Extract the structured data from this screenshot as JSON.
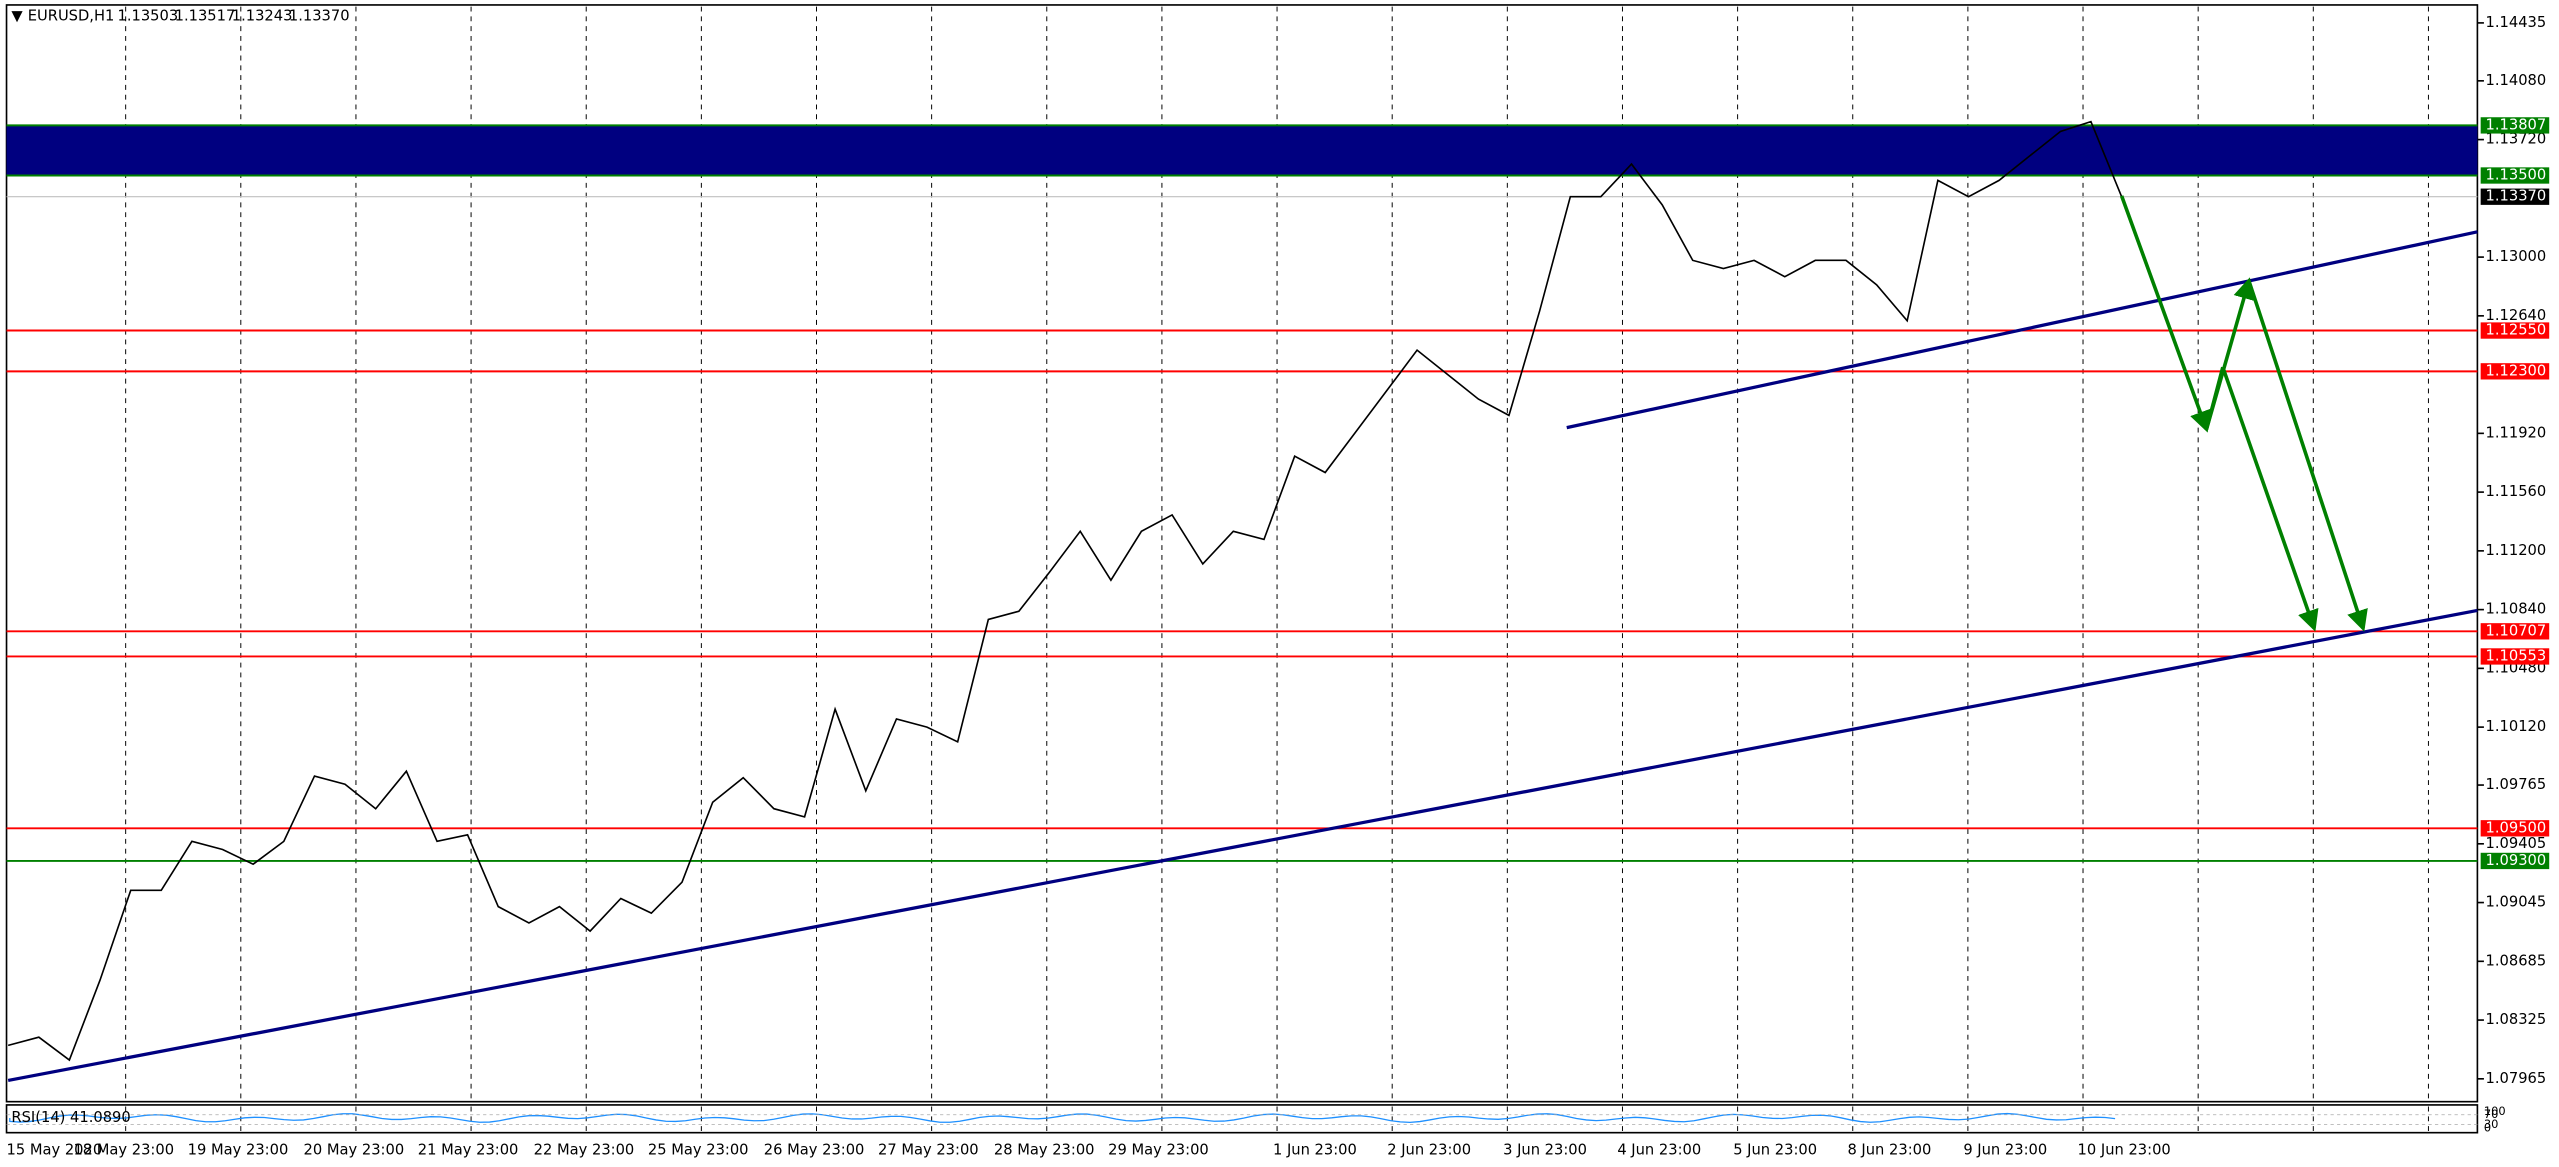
{
  "header": {
    "symbol": "EURUSD,H1",
    "ohlc": [
      "1.13503",
      "1.13517",
      "1.13243",
      "1.13370"
    ]
  },
  "price_axis": {
    "labels": [
      "1.14435",
      "1.14080",
      "1.13720",
      "1.13000",
      "1.12640",
      "1.11920",
      "1.11560",
      "1.11200",
      "1.10840",
      "1.10480",
      "1.10120",
      "1.09765",
      "1.09405",
      "1.09045",
      "1.08685",
      "1.08325",
      "1.07965"
    ]
  },
  "levels": [
    {
      "label": "1.13807",
      "color": "#008000"
    },
    {
      "label": "1.13500",
      "color": "#008000"
    },
    {
      "label": "1.13370",
      "color": "#000000"
    },
    {
      "label": "1.12550",
      "color": "#ff0000"
    },
    {
      "label": "1.12300",
      "color": "#ff0000"
    },
    {
      "label": "1.10707",
      "color": "#ff0000"
    },
    {
      "label": "1.10553",
      "color": "#ff0000"
    },
    {
      "label": "1.09500",
      "color": "#ff0000"
    },
    {
      "label": "1.09300",
      "color": "#008000"
    }
  ],
  "date_axis": {
    "labels": [
      "15 May 2020",
      "18 May 23:00",
      "19 May 23:00",
      "20 May 23:00",
      "21 May 23:00",
      "22 May 23:00",
      "25 May 23:00",
      "26 May 23:00",
      "27 May 23:00",
      "28 May 23:00",
      "29 May 23:00",
      "1 Jun 23:00",
      "2 Jun 23:00",
      "3 Jun 23:00",
      "4 Jun 23:00",
      "5 Jun 23:00",
      "8 Jun 23:00",
      "9 Jun 23:00",
      "10 Jun 23:00"
    ]
  },
  "rsi": {
    "label": "RSI(14) 41.0890",
    "axis_labels": [
      "100",
      "70",
      "30",
      "0"
    ]
  },
  "price": {
    "closes": [
      1.0817,
      1.0822,
      1.0808,
      1.0857,
      1.0912,
      1.0912,
      1.0942,
      1.0937,
      1.0928,
      1.0942,
      1.0982,
      1.0977,
      1.0962,
      1.0985,
      1.0942,
      1.0946,
      1.0902,
      1.0892,
      1.0902,
      1.0887,
      1.0907,
      1.0898,
      1.0917,
      1.0966,
      1.0981,
      1.0962,
      1.0957,
      1.1023,
      1.0973,
      1.1017,
      1.1012,
      1.1003,
      1.1078,
      1.1083,
      1.1107,
      1.1132,
      1.1102,
      1.1132,
      1.1142,
      1.1112,
      1.1132,
      1.1127,
      1.1178,
      1.1168,
      1.1193,
      1.1218,
      1.1243,
      1.1228,
      1.1213,
      1.1203,
      1.1267,
      1.1337,
      1.1337,
      1.1357,
      1.1332,
      1.1298,
      1.1293,
      1.1298,
      1.1288,
      1.1298,
      1.1298,
      1.1283,
      1.1261,
      1.1347,
      1.1337,
      1.1347,
      1.1362,
      1.1377,
      1.1383,
      1.1337
    ]
  }
}
